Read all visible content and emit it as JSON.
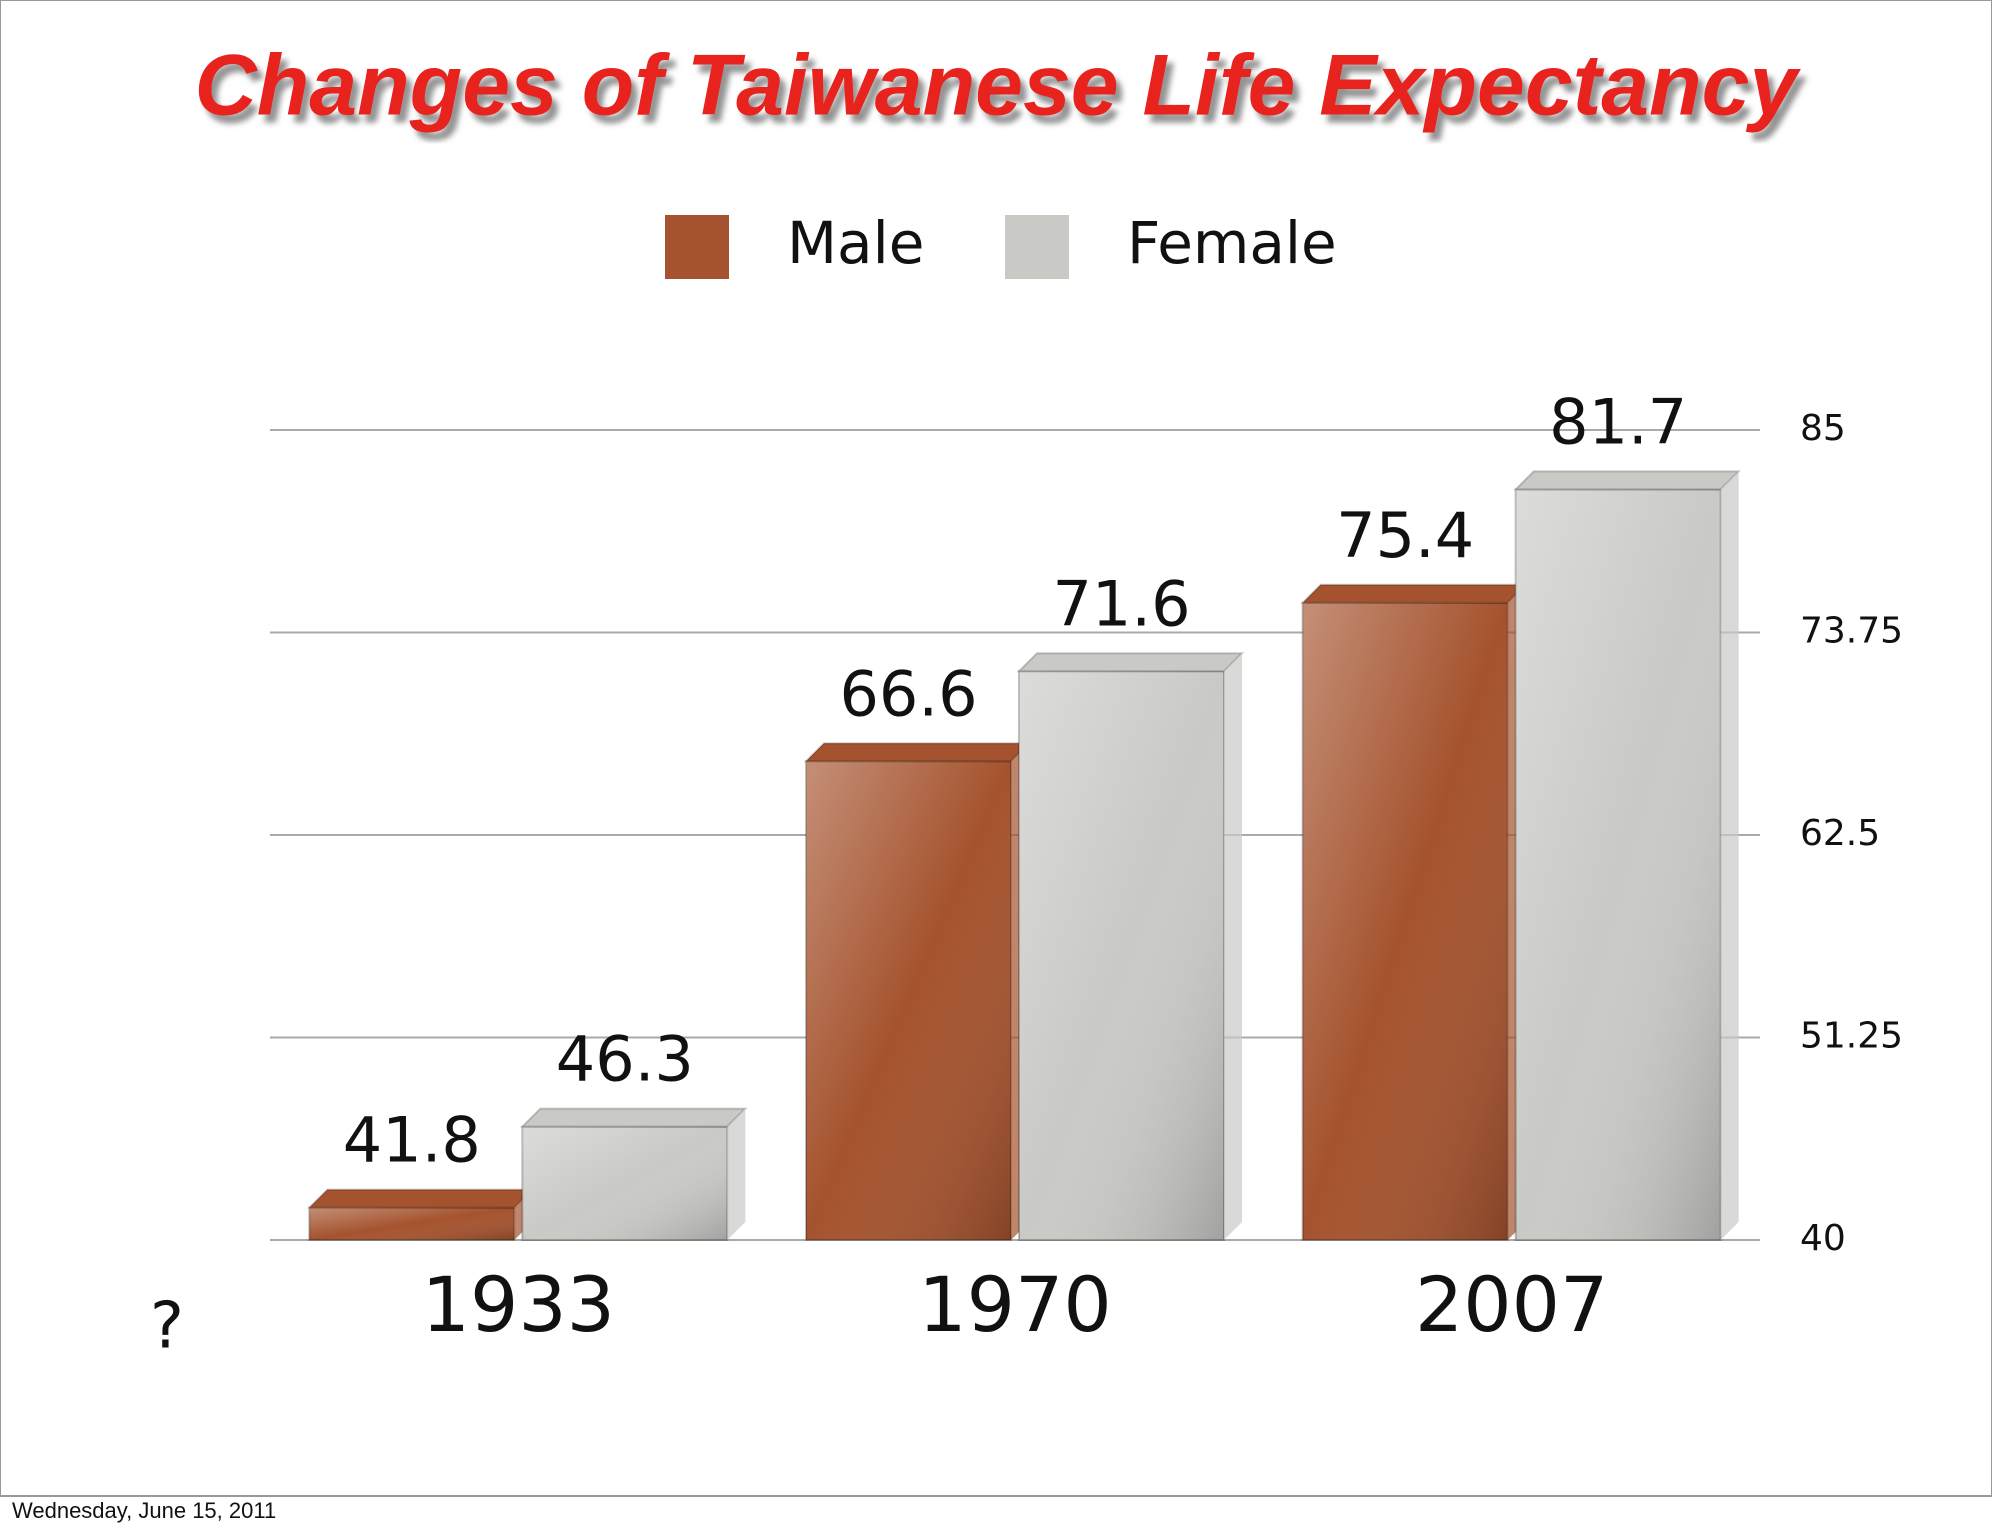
{
  "chart_data": {
    "type": "bar",
    "title": "Changes of Taiwanese Life Expectancy",
    "categories": [
      "1933",
      "1970",
      "2007"
    ],
    "series": [
      {
        "name": "Male",
        "color": "#a5532e",
        "values": [
          41.8,
          66.6,
          75.4
        ]
      },
      {
        "name": "Female",
        "color": "#c9c9c6",
        "values": [
          46.3,
          71.6,
          81.7
        ]
      }
    ],
    "ylim": [
      40,
      85
    ],
    "yticks": [
      40,
      51.25,
      62.5,
      73.75,
      85
    ],
    "grid": true,
    "annotation": "?"
  },
  "footer": {
    "date": "Wednesday, June 15, 2011"
  }
}
